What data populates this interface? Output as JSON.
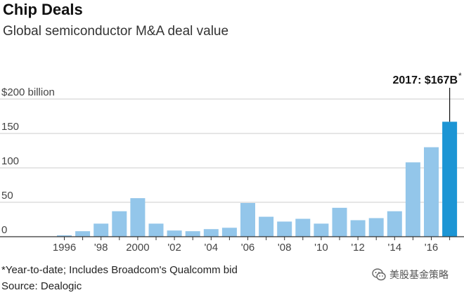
{
  "header": {
    "title": "Chip Deals",
    "subtitle": "Global semiconductor M&A deal value"
  },
  "footer": {
    "footnote": "*Year-to-date; Includes Broadcom's Qualcomm bid",
    "source": "Source: Dealogic"
  },
  "watermark": {
    "icon": "wechat-icon",
    "text": "美股基金策略"
  },
  "colors": {
    "bar": "#93c6ea",
    "highlight_bar": "#1c95d4",
    "grid": "#cccccc",
    "axis": "#333333",
    "text": "#111111"
  },
  "chart_data": {
    "type": "bar",
    "title": "Chip Deals",
    "subtitle": "Global semiconductor M&A deal value",
    "xlabel": "",
    "ylabel": "",
    "ylim": [
      0,
      200
    ],
    "grid": true,
    "categories": [
      "1996",
      "1997",
      "1998",
      "1999",
      "2000",
      "2001",
      "2002",
      "2003",
      "2004",
      "2005",
      "2006",
      "2007",
      "2008",
      "2009",
      "2010",
      "2011",
      "2012",
      "2013",
      "2014",
      "2015",
      "2016",
      "2017"
    ],
    "values": [
      2,
      8,
      19,
      37,
      56,
      19,
      9,
      8,
      11,
      13,
      49,
      29,
      22,
      26,
      19,
      42,
      24,
      27,
      37,
      108,
      130,
      167
    ],
    "highlight_index": 21,
    "x_tick_labels": [
      "1996",
      "",
      "'98",
      "",
      "2000",
      "",
      "'02",
      "",
      "'04",
      "",
      "'06",
      "",
      "'08",
      "",
      "'10",
      "",
      "'12",
      "",
      "'14",
      "",
      "'16",
      ""
    ],
    "y_ticks": [
      0,
      50,
      100,
      150,
      200
    ],
    "y_tick_labels": [
      "0",
      "50",
      "100",
      "150",
      "$200 billion"
    ],
    "annotation": {
      "index": 21,
      "text": "2017: $167B",
      "suffix": "*"
    }
  }
}
